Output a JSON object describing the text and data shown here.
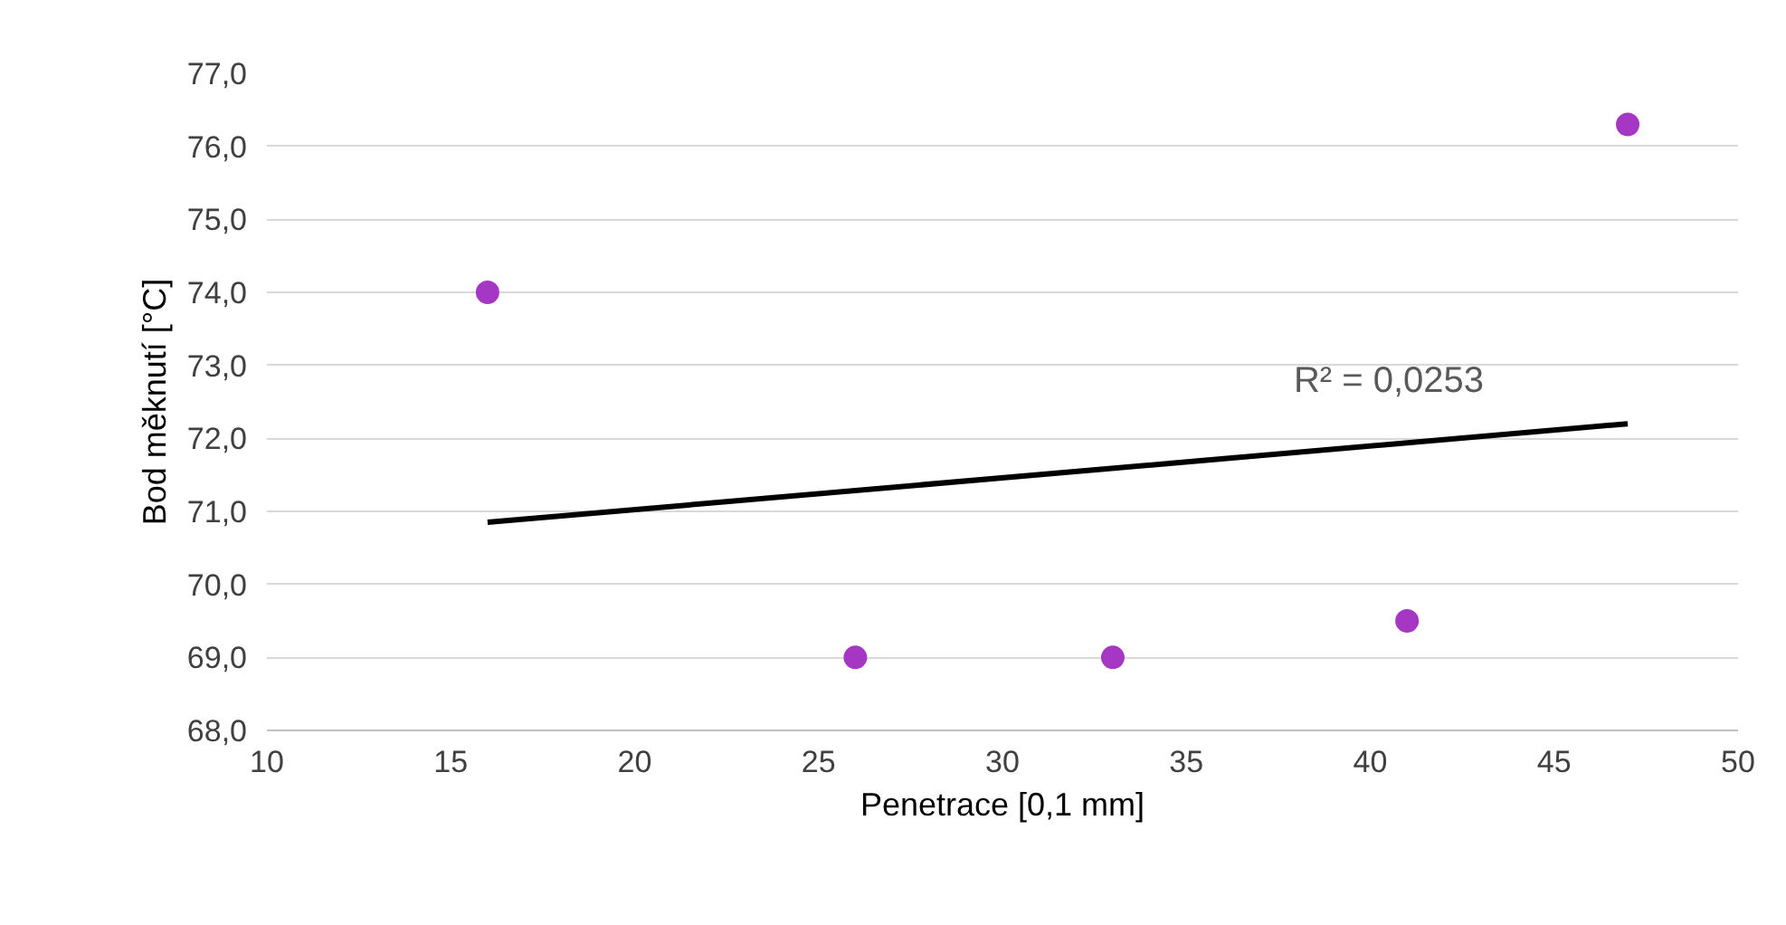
{
  "chart_data": {
    "type": "scatter",
    "xlabel": "Penetrace [0,1 mm]",
    "ylabel": "Bod měknutí [°C]",
    "xlim": [
      10,
      50
    ],
    "xticks": [
      10,
      15,
      20,
      25,
      30,
      35,
      40,
      45,
      50
    ],
    "ylim": [
      68,
      77
    ],
    "yticks": [
      {
        "value": 68,
        "label": "68,0"
      },
      {
        "value": 69,
        "label": "69,0"
      },
      {
        "value": 70,
        "label": "70,0"
      },
      {
        "value": 71,
        "label": "71,0"
      },
      {
        "value": 72,
        "label": "72,0"
      },
      {
        "value": 73,
        "label": "73,0"
      },
      {
        "value": 74,
        "label": "74,0"
      },
      {
        "value": 75,
        "label": "75,0"
      },
      {
        "value": 76,
        "label": "76,0"
      },
      {
        "value": 77,
        "label": "77,0"
      }
    ],
    "grid": "y",
    "series": [
      {
        "color": "#a637c4",
        "marker": "circle",
        "x": [
          16,
          26,
          33,
          41,
          47
        ],
        "values": [
          74.0,
          69.0,
          69.0,
          69.5,
          76.3
        ]
      },
      {
        "type": "line",
        "color": "#000000",
        "x": [
          16,
          47
        ],
        "values": [
          70.85,
          72.2
        ]
      }
    ],
    "annotations": [
      "R² = 0,0253"
    ]
  }
}
